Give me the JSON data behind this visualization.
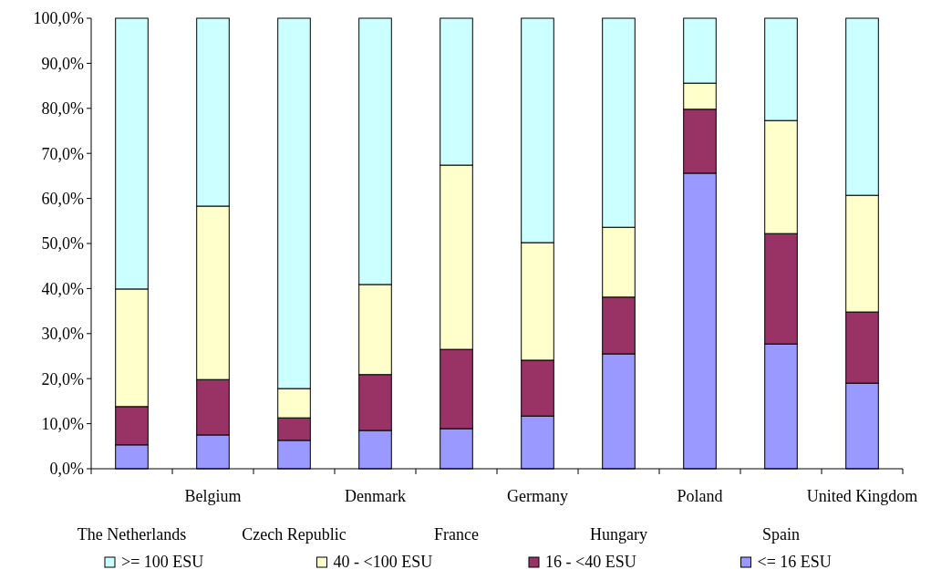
{
  "chart_data": {
    "type": "bar",
    "stacked": true,
    "categories": [
      "The Netherlands",
      "Belgium",
      "Czech Republic",
      "Denmark",
      "France",
      "Germany",
      "Hungary",
      "Poland",
      "Spain",
      "United Kingdom"
    ],
    "series": [
      {
        "name": "<= 16 ESU",
        "color": "#9999ff",
        "values": [
          5.3,
          7.5,
          6.3,
          8.5,
          8.9,
          11.7,
          25.5,
          65.6,
          27.7,
          19.0
        ]
      },
      {
        "name": "16 - <40 ESU",
        "color": "#993366",
        "values": [
          8.5,
          12.3,
          5.0,
          12.4,
          17.6,
          12.4,
          12.6,
          14.2,
          24.5,
          15.8
        ]
      },
      {
        "name": "40 - <100 ESU",
        "color": "#ffffcc",
        "values": [
          26.1,
          38.5,
          6.5,
          20.0,
          40.9,
          26.1,
          15.5,
          5.8,
          25.1,
          25.9
        ]
      },
      {
        "name": ">= 100 ESU",
        "color": "#ccffff",
        "values": [
          60.1,
          41.7,
          82.2,
          59.1,
          32.6,
          49.8,
          46.4,
          14.4,
          22.7,
          39.3
        ]
      }
    ],
    "ylim": [
      0,
      100
    ],
    "yticks": [
      {
        "value": 0,
        "label": "0,0%"
      },
      {
        "value": 10,
        "label": "10,0%"
      },
      {
        "value": 20,
        "label": "20,0%"
      },
      {
        "value": 30,
        "label": "30,0%"
      },
      {
        "value": 40,
        "label": "40,0%"
      },
      {
        "value": 50,
        "label": "50,0%"
      },
      {
        "value": 60,
        "label": "60,0%"
      },
      {
        "value": 70,
        "label": "70,0%"
      },
      {
        "value": 80,
        "label": "80,0%"
      },
      {
        "value": 90,
        "label": "90,0%"
      },
      {
        "value": 100,
        "label": "100,0%"
      }
    ],
    "legend": "bottom"
  }
}
